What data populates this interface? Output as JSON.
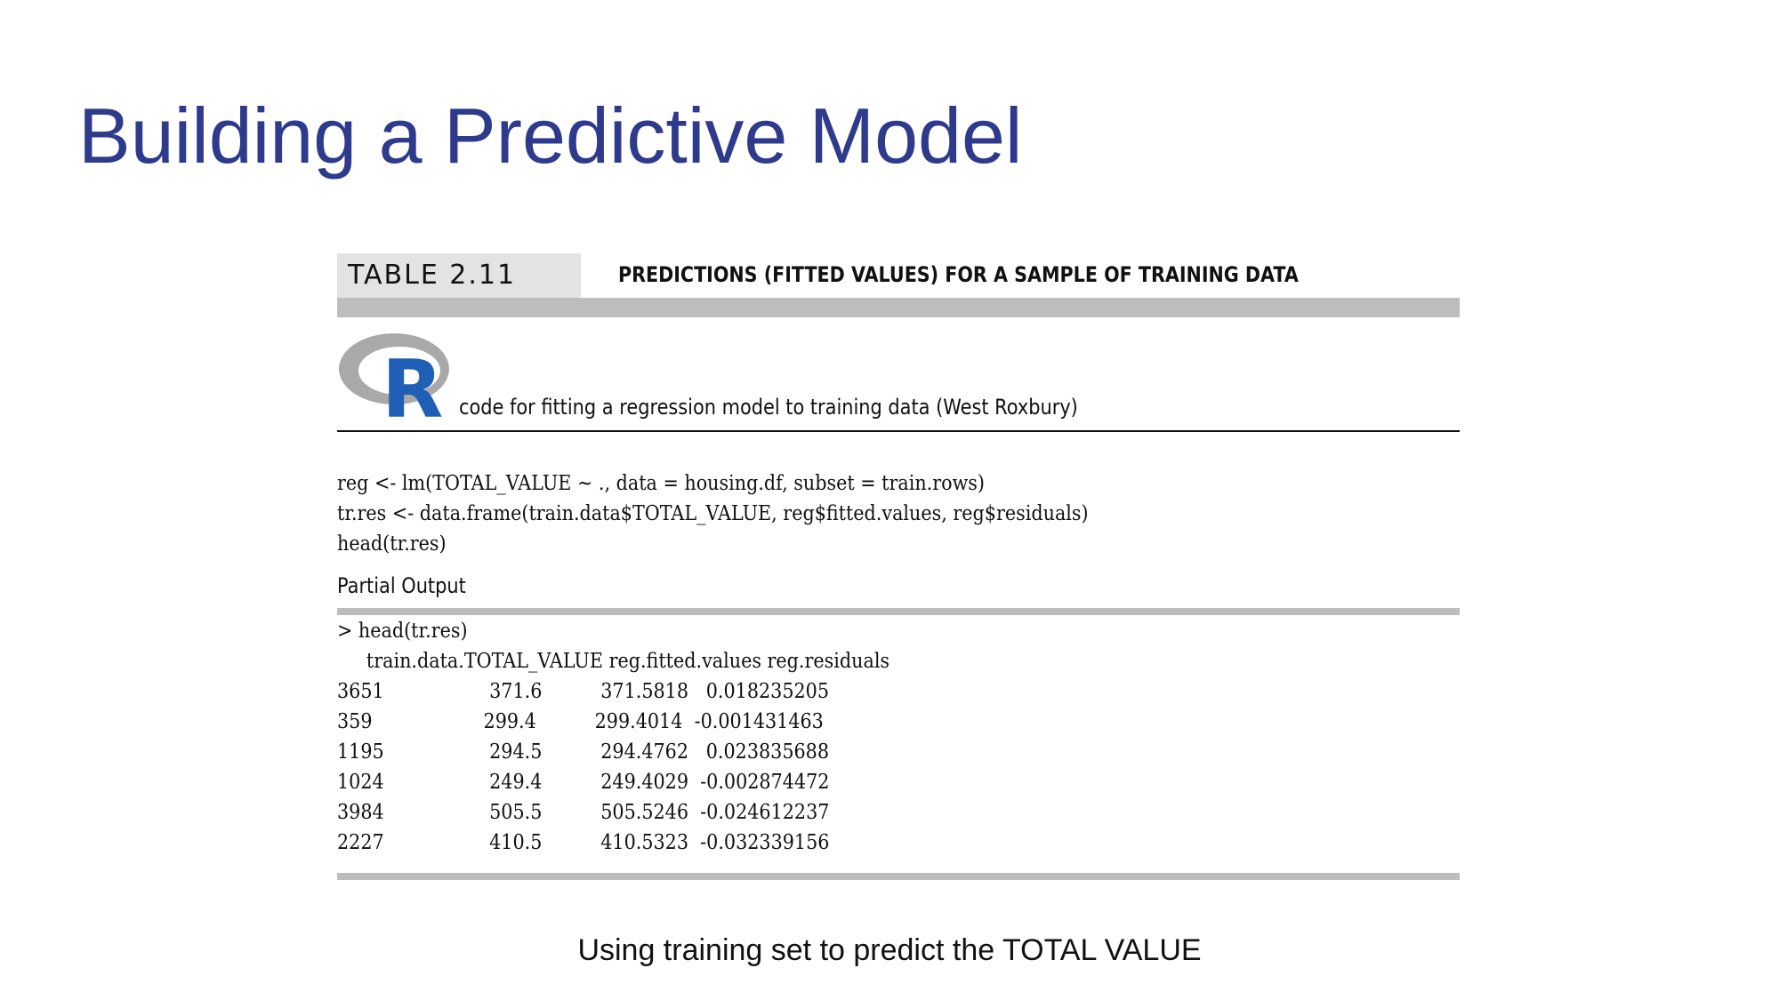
{
  "slide": {
    "title": "Building a Predictive Model",
    "caption": "Using training set to predict the TOTAL VALUE"
  },
  "figure": {
    "table_number": "TABLE 2.11",
    "table_caption": "PREDICTIONS (FITTED VALUES) FOR A SAMPLE OF TRAINING DATA",
    "logo_icon": "r-logo-icon",
    "logo_letter": "R",
    "subtitle": "code for fitting a regression model to training data (West Roxbury)",
    "code_lines": [
      "reg <- lm(TOTAL_VALUE ~ ., data = housing.df, subset = train.rows)",
      "tr.res <- data.frame(train.data$TOTAL_VALUE, reg$fitted.values, reg$residuals)",
      "head(tr.res)"
    ],
    "partial_output_label": "Partial Output",
    "output_command": "> head(tr.res)",
    "output_headers": [
      "train.data.TOTAL_VALUE",
      "reg.fitted.values",
      "reg.residuals"
    ],
    "output_rows": [
      {
        "id": "3651",
        "total_value": "371.6",
        "fitted": "371.5818",
        "residual": "0.018235205"
      },
      {
        "id": "359",
        "total_value": "299.4",
        "fitted": "299.4014",
        "residual": "-0.001431463"
      },
      {
        "id": "1195",
        "total_value": "294.5",
        "fitted": "294.4762",
        "residual": "0.023835688"
      },
      {
        "id": "1024",
        "total_value": "249.4",
        "fitted": "249.4029",
        "residual": "-0.002874472"
      },
      {
        "id": "3984",
        "total_value": "505.5",
        "fitted": "505.5246",
        "residual": "-0.024612237"
      },
      {
        "id": "2227",
        "total_value": "410.5",
        "fitted": "410.5323",
        "residual": "-0.032339156"
      }
    ]
  },
  "colors": {
    "title": "#2e3a8c",
    "logo_ring": "#a9a9a9",
    "logo_letter": "#1f5fb5",
    "bar": "#bdbdbd"
  }
}
